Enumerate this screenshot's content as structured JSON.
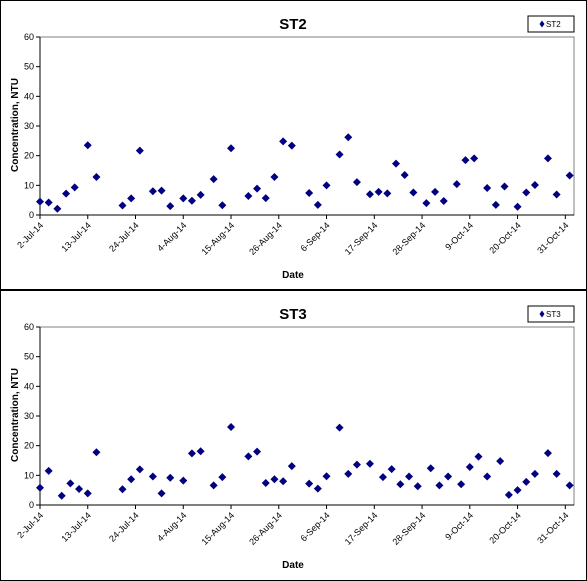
{
  "colors": {
    "marker": "#000080"
  },
  "chart_data": [
    {
      "type": "scatter",
      "title": "ST2",
      "xlabel": "Date",
      "ylabel": "Concentration, NTU",
      "ylim": [
        0,
        60
      ],
      "yticks": [
        "0",
        "10",
        "20",
        "30",
        "40",
        "50",
        "60"
      ],
      "xlim": [
        "2014-07-02",
        "2014-11-02"
      ],
      "xticks": [
        {
          "date": "2014-07-02",
          "label": "2-Jul-14"
        },
        {
          "date": "2014-07-13",
          "label": "13-Jul-14"
        },
        {
          "date": "2014-07-24",
          "label": "24-Jul-14"
        },
        {
          "date": "2014-08-04",
          "label": "4-Aug-14"
        },
        {
          "date": "2014-08-15",
          "label": "15-Aug-14"
        },
        {
          "date": "2014-08-26",
          "label": "26-Aug-14"
        },
        {
          "date": "2014-09-06",
          "label": "6-Sep-14"
        },
        {
          "date": "2014-09-17",
          "label": "17-Sep-14"
        },
        {
          "date": "2014-09-28",
          "label": "28-Sep-14"
        },
        {
          "date": "2014-10-09",
          "label": "9-Oct-14"
        },
        {
          "date": "2014-10-20",
          "label": "20-Oct-14"
        },
        {
          "date": "2014-10-31",
          "label": "31-Oct-14"
        }
      ],
      "grid": false,
      "legend_position": "top-right",
      "series": [
        {
          "name": "ST2",
          "marker": "diamond",
          "points": [
            {
              "x": "2014-07-02",
              "y": 4.5
            },
            {
              "x": "2014-07-04",
              "y": 4.2
            },
            {
              "x": "2014-07-06",
              "y": 2.1
            },
            {
              "x": "2014-07-08",
              "y": 7.2
            },
            {
              "x": "2014-07-10",
              "y": 9.3
            },
            {
              "x": "2014-07-13",
              "y": 23.5
            },
            {
              "x": "2014-07-15",
              "y": 12.8
            },
            {
              "x": "2014-07-21",
              "y": 3.2
            },
            {
              "x": "2014-07-23",
              "y": 5.6
            },
            {
              "x": "2014-07-25",
              "y": 21.7
            },
            {
              "x": "2014-07-28",
              "y": 8.0
            },
            {
              "x": "2014-07-30",
              "y": 8.2
            },
            {
              "x": "2014-08-01",
              "y": 3.0
            },
            {
              "x": "2014-08-04",
              "y": 5.6
            },
            {
              "x": "2014-08-06",
              "y": 4.8
            },
            {
              "x": "2014-08-08",
              "y": 6.8
            },
            {
              "x": "2014-08-11",
              "y": 12.1
            },
            {
              "x": "2014-08-13",
              "y": 3.3
            },
            {
              "x": "2014-08-15",
              "y": 22.5
            },
            {
              "x": "2014-08-19",
              "y": 6.4
            },
            {
              "x": "2014-08-21",
              "y": 8.9
            },
            {
              "x": "2014-08-23",
              "y": 5.7
            },
            {
              "x": "2014-08-25",
              "y": 12.8
            },
            {
              "x": "2014-08-27",
              "y": 24.8
            },
            {
              "x": "2014-08-29",
              "y": 23.4
            },
            {
              "x": "2014-09-02",
              "y": 7.4
            },
            {
              "x": "2014-09-04",
              "y": 3.4
            },
            {
              "x": "2014-09-06",
              "y": 10.0
            },
            {
              "x": "2014-09-09",
              "y": 20.4
            },
            {
              "x": "2014-09-11",
              "y": 26.2
            },
            {
              "x": "2014-09-13",
              "y": 11.1
            },
            {
              "x": "2014-09-16",
              "y": 7.0
            },
            {
              "x": "2014-09-18",
              "y": 7.8
            },
            {
              "x": "2014-09-20",
              "y": 7.3
            },
            {
              "x": "2014-09-22",
              "y": 17.3
            },
            {
              "x": "2014-09-24",
              "y": 13.5
            },
            {
              "x": "2014-09-26",
              "y": 7.6
            },
            {
              "x": "2014-09-29",
              "y": 4.0
            },
            {
              "x": "2014-10-01",
              "y": 7.8
            },
            {
              "x": "2014-10-03",
              "y": 4.7
            },
            {
              "x": "2014-10-06",
              "y": 10.4
            },
            {
              "x": "2014-10-08",
              "y": 18.5
            },
            {
              "x": "2014-10-10",
              "y": 19.1
            },
            {
              "x": "2014-10-13",
              "y": 9.1
            },
            {
              "x": "2014-10-15",
              "y": 3.4
            },
            {
              "x": "2014-10-17",
              "y": 9.6
            },
            {
              "x": "2014-10-20",
              "y": 2.8
            },
            {
              "x": "2014-10-22",
              "y": 7.6
            },
            {
              "x": "2014-10-24",
              "y": 10.1
            },
            {
              "x": "2014-10-27",
              "y": 19.1
            },
            {
              "x": "2014-10-29",
              "y": 6.9
            },
            {
              "x": "2014-11-01",
              "y": 13.3
            }
          ]
        }
      ]
    },
    {
      "type": "scatter",
      "title": "ST3",
      "xlabel": "Date",
      "ylabel": "Concentration, NTU",
      "ylim": [
        0,
        60
      ],
      "yticks": [
        "0",
        "10",
        "20",
        "30",
        "40",
        "50",
        "60"
      ],
      "xlim": [
        "2014-07-02",
        "2014-11-02"
      ],
      "xticks": [
        {
          "date": "2014-07-02",
          "label": "2-Jul-14"
        },
        {
          "date": "2014-07-13",
          "label": "13-Jul-14"
        },
        {
          "date": "2014-07-24",
          "label": "24-Jul-14"
        },
        {
          "date": "2014-08-04",
          "label": "4-Aug-14"
        },
        {
          "date": "2014-08-15",
          "label": "15-Aug-14"
        },
        {
          "date": "2014-08-26",
          "label": "26-Aug-14"
        },
        {
          "date": "2014-09-06",
          "label": "6-Sep-14"
        },
        {
          "date": "2014-09-17",
          "label": "17-Sep-14"
        },
        {
          "date": "2014-09-28",
          "label": "28-Sep-14"
        },
        {
          "date": "2014-10-09",
          "label": "9-Oct-14"
        },
        {
          "date": "2014-10-20",
          "label": "20-Oct-14"
        },
        {
          "date": "2014-10-31",
          "label": "31-Oct-14"
        }
      ],
      "grid": false,
      "legend_position": "top-right",
      "series": [
        {
          "name": "ST3",
          "marker": "diamond",
          "points": [
            {
              "x": "2014-07-02",
              "y": 5.8
            },
            {
              "x": "2014-07-04",
              "y": 11.5
            },
            {
              "x": "2014-07-07",
              "y": 3.1
            },
            {
              "x": "2014-07-09",
              "y": 7.3
            },
            {
              "x": "2014-07-11",
              "y": 5.4
            },
            {
              "x": "2014-07-13",
              "y": 3.9
            },
            {
              "x": "2014-07-15",
              "y": 17.8
            },
            {
              "x": "2014-07-21",
              "y": 5.3
            },
            {
              "x": "2014-07-23",
              "y": 8.7
            },
            {
              "x": "2014-07-25",
              "y": 12.0
            },
            {
              "x": "2014-07-28",
              "y": 9.6
            },
            {
              "x": "2014-07-30",
              "y": 3.9
            },
            {
              "x": "2014-08-01",
              "y": 9.2
            },
            {
              "x": "2014-08-04",
              "y": 8.2
            },
            {
              "x": "2014-08-06",
              "y": 17.4
            },
            {
              "x": "2014-08-08",
              "y": 18.1
            },
            {
              "x": "2014-08-11",
              "y": 6.6
            },
            {
              "x": "2014-08-13",
              "y": 9.4
            },
            {
              "x": "2014-08-15",
              "y": 26.3
            },
            {
              "x": "2014-08-19",
              "y": 16.4
            },
            {
              "x": "2014-08-21",
              "y": 18.0
            },
            {
              "x": "2014-08-23",
              "y": 7.4
            },
            {
              "x": "2014-08-25",
              "y": 8.7
            },
            {
              "x": "2014-08-27",
              "y": 8.0
            },
            {
              "x": "2014-08-29",
              "y": 13.1
            },
            {
              "x": "2014-09-02",
              "y": 7.2
            },
            {
              "x": "2014-09-04",
              "y": 5.5
            },
            {
              "x": "2014-09-06",
              "y": 9.7
            },
            {
              "x": "2014-09-09",
              "y": 26.1
            },
            {
              "x": "2014-09-11",
              "y": 10.5
            },
            {
              "x": "2014-09-13",
              "y": 13.6
            },
            {
              "x": "2014-09-16",
              "y": 13.9
            },
            {
              "x": "2014-09-19",
              "y": 9.4
            },
            {
              "x": "2014-09-21",
              "y": 12.1
            },
            {
              "x": "2014-09-23",
              "y": 7.0
            },
            {
              "x": "2014-09-25",
              "y": 9.6
            },
            {
              "x": "2014-09-27",
              "y": 6.3
            },
            {
              "x": "2014-09-30",
              "y": 12.4
            },
            {
              "x": "2014-10-02",
              "y": 6.6
            },
            {
              "x": "2014-10-04",
              "y": 9.6
            },
            {
              "x": "2014-10-07",
              "y": 7.0
            },
            {
              "x": "2014-10-09",
              "y": 12.8
            },
            {
              "x": "2014-10-11",
              "y": 16.3
            },
            {
              "x": "2014-10-13",
              "y": 9.6
            },
            {
              "x": "2014-10-16",
              "y": 14.8
            },
            {
              "x": "2014-10-18",
              "y": 3.4
            },
            {
              "x": "2014-10-20",
              "y": 5.0
            },
            {
              "x": "2014-10-22",
              "y": 7.8
            },
            {
              "x": "2014-10-24",
              "y": 10.5
            },
            {
              "x": "2014-10-27",
              "y": 17.5
            },
            {
              "x": "2014-10-29",
              "y": 10.5
            },
            {
              "x": "2014-11-01",
              "y": 6.6
            }
          ]
        }
      ]
    }
  ]
}
